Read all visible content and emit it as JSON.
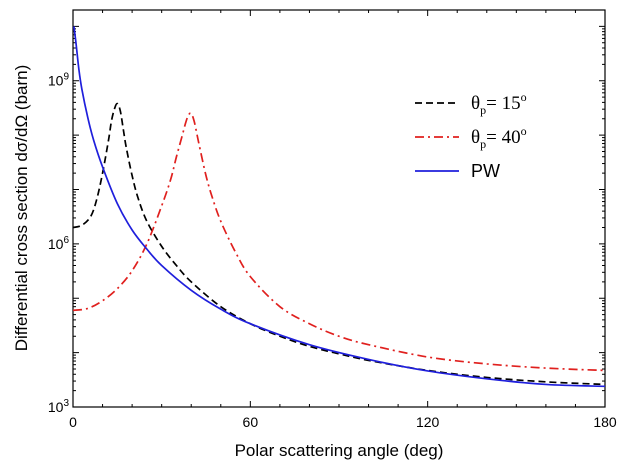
{
  "chart_data": {
    "type": "line",
    "xlabel": "Polar scattering angle (deg)",
    "ylabel": "Differential cross section dσ/dΩ (barn)",
    "xlim": [
      0,
      180
    ],
    "ylim": [
      1000,
      20000000000
    ],
    "yscale": "log",
    "x_ticks": [
      0,
      60,
      120,
      180
    ],
    "x_tick_labels": [
      "0",
      "60",
      "120",
      "180"
    ],
    "y_ticks": [
      1000,
      1000000,
      1000000000
    ],
    "y_tick_labels": [
      {
        "base": "10",
        "exp": "3"
      },
      {
        "base": "10",
        "exp": "6"
      },
      {
        "base": "10",
        "exp": "9"
      }
    ],
    "grid": false,
    "legend_position": "top-right",
    "series": [
      {
        "name": "θp= 15°",
        "legend": {
          "theta": "θ",
          "sub": "p",
          "text": "= 15",
          "sup": "o"
        },
        "color": "#000000",
        "dash": "dashed",
        "x": [
          0,
          3,
          6,
          8,
          10,
          12,
          13,
          14,
          15,
          16,
          17,
          18,
          20,
          22,
          25,
          30,
          35,
          40,
          50,
          60,
          70,
          80,
          90,
          100,
          120,
          140,
          160,
          180
        ],
        "y": [
          2000000,
          2200000,
          3200000,
          6500000,
          20000000,
          80000000,
          180000000,
          300000000,
          380000000,
          280000000,
          130000000,
          60000000,
          18000000,
          7000000,
          2600000,
          900000,
          400000,
          200000,
          70000,
          34000,
          20000,
          13000,
          9500,
          7200,
          4700,
          3500,
          2900,
          2600
        ]
      },
      {
        "name": "θp= 40°",
        "legend": {
          "theta": "θ",
          "sub": "p",
          "text": "= 40",
          "sup": "o"
        },
        "color": "#e0201e",
        "dash": "dashdot",
        "x": [
          0,
          5,
          10,
          15,
          20,
          25,
          30,
          33,
          35,
          37,
          38,
          39,
          40,
          41,
          42,
          43,
          45,
          47,
          50,
          55,
          60,
          70,
          80,
          90,
          100,
          120,
          140,
          160,
          180
        ],
        "y": [
          60000,
          65000,
          90000,
          150000,
          320000,
          1000000,
          5000000,
          15000000,
          40000000,
          100000000,
          160000000,
          230000000,
          250000000,
          180000000,
          100000000,
          55000000,
          18000000,
          7500000,
          2600000,
          700000,
          250000,
          70000,
          34000,
          20000,
          14000,
          8300,
          6200,
          5200,
          4700
        ]
      },
      {
        "name": "PW",
        "color": "#1f1fdc",
        "dash": "solid",
        "x": [
          0.3,
          1,
          2,
          3,
          5,
          7,
          10,
          15,
          20,
          25,
          30,
          40,
          50,
          60,
          80,
          100,
          120,
          140,
          160,
          180
        ],
        "y": [
          10000000000,
          5000000000,
          1600000000,
          700000000,
          210000000,
          80000000,
          26000000,
          5500000,
          1800000,
          800000,
          400000,
          140000,
          63000,
          34000,
          14000,
          7500,
          4600,
          3300,
          2600,
          2400
        ]
      }
    ]
  }
}
